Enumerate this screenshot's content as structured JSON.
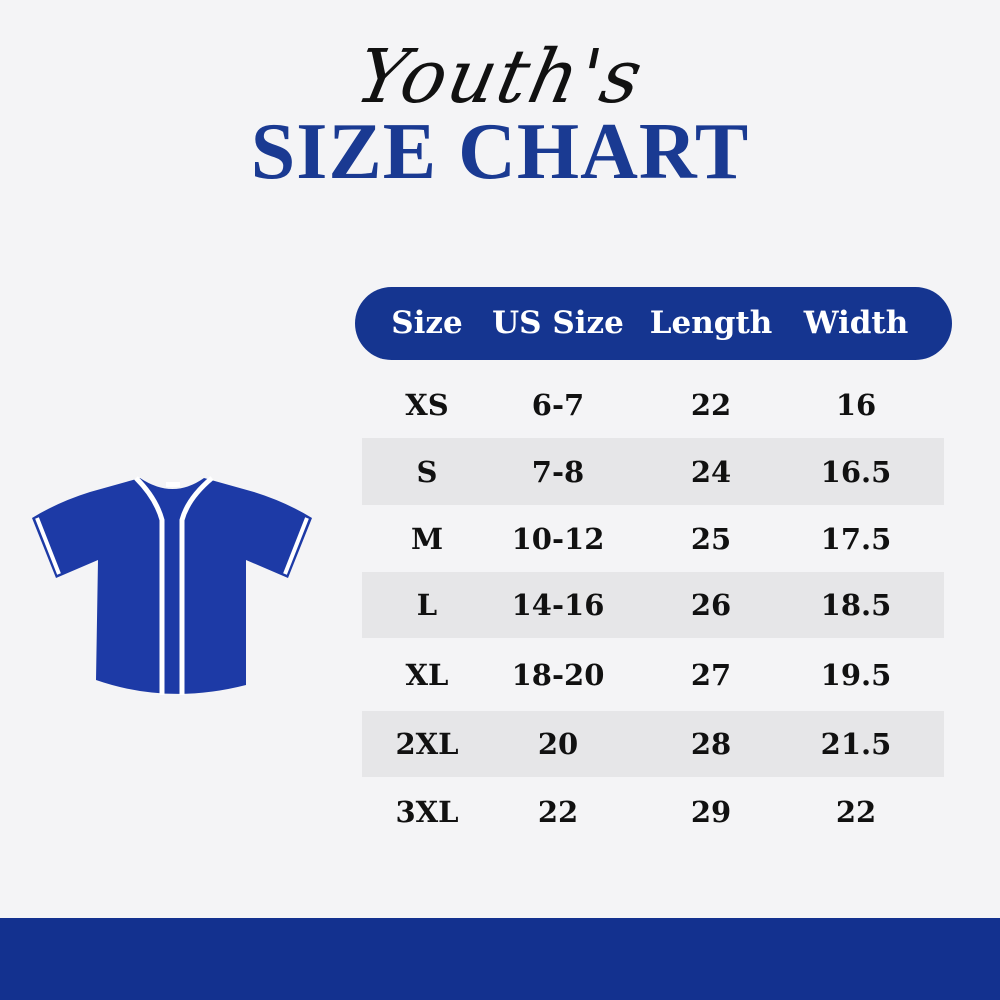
{
  "heading": {
    "script": "Youth's",
    "title": "SIZE CHART"
  },
  "colors": {
    "brand_blue": "#153590",
    "stripe": "#e6e6e8",
    "background": "#f4f4f6"
  },
  "image": {
    "icon": "baseball-jersey-icon"
  },
  "table": {
    "columns": [
      "Size",
      "US Size",
      "Length",
      "Width"
    ],
    "rows": [
      [
        "XS",
        "6-7",
        "22",
        "16"
      ],
      [
        "S",
        "7-8",
        "24",
        "16.5"
      ],
      [
        "M",
        "10-12",
        "25",
        "17.5"
      ],
      [
        "L",
        "14-16",
        "26",
        "18.5"
      ],
      [
        "XL",
        "18-20",
        "27",
        "19.5"
      ],
      [
        "2XL",
        "20",
        "28",
        "21.5"
      ],
      [
        "3XL",
        "22",
        "29",
        "22"
      ]
    ]
  }
}
